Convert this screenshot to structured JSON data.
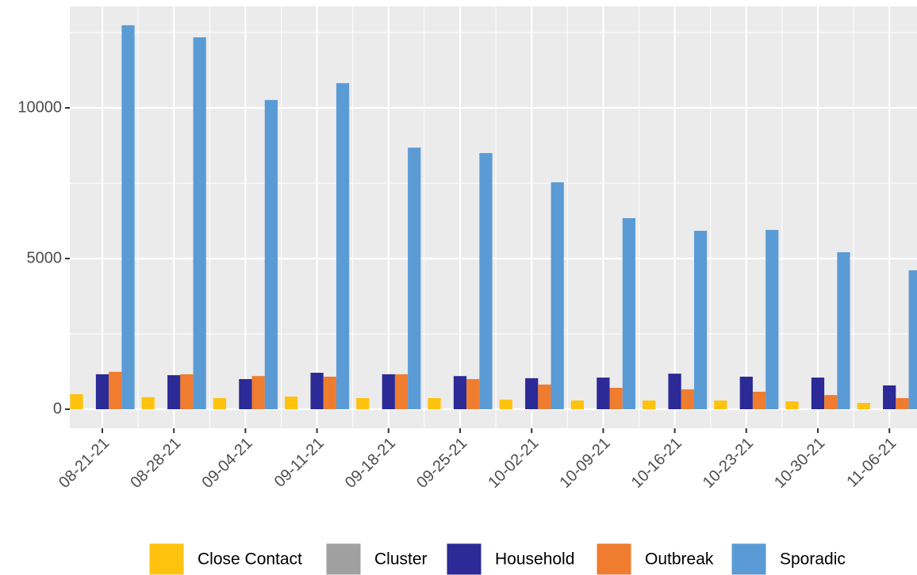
{
  "chart_data": {
    "type": "bar",
    "categories": [
      "08-21-21",
      "08-28-21",
      "09-04-21",
      "09-11-21",
      "09-18-21",
      "09-25-21",
      "10-02-21",
      "10-09-21",
      "10-16-21",
      "10-23-21",
      "10-30-21",
      "11-06-21"
    ],
    "series": [
      {
        "name": "Close Contact",
        "color": "#ffc20e",
        "values": [
          500,
          400,
          370,
          420,
          370,
          370,
          320,
          290,
          290,
          290,
          260,
          210
        ]
      },
      {
        "name": "Cluster",
        "color": "#a0a0a0",
        "values": [
          0,
          0,
          0,
          0,
          0,
          0,
          0,
          0,
          0,
          0,
          0,
          0
        ]
      },
      {
        "name": "Household",
        "color": "#2b2a96",
        "values": [
          1160,
          1130,
          1000,
          1210,
          1160,
          1100,
          1030,
          1050,
          1180,
          1080,
          1050,
          790
        ]
      },
      {
        "name": "Outbreak",
        "color": "#f07c30",
        "values": [
          1240,
          1160,
          1100,
          1080,
          1160,
          1000,
          820,
          710,
          660,
          580,
          470,
          370
        ]
      },
      {
        "name": "Sporadic",
        "color": "#5b9bd5",
        "values": [
          12740,
          12340,
          10260,
          10820,
          8680,
          8500,
          7530,
          6340,
          5920,
          5950,
          5210,
          4610
        ]
      }
    ],
    "ylim": [
      -632,
      13368
    ],
    "yticks": [
      0,
      5000,
      10000
    ],
    "minor_grid": [
      2500,
      7500,
      12500
    ],
    "grid": true,
    "legend": "bottom"
  }
}
